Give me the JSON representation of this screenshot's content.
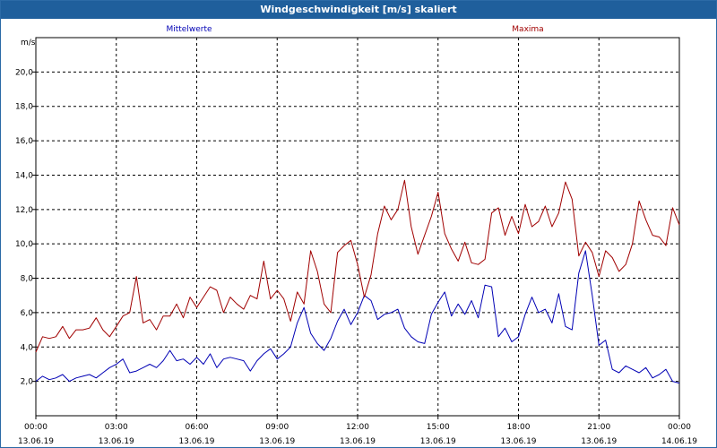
{
  "window": {
    "title": "Windgeschwindigkeit [m/s] skaliert"
  },
  "chart_data": {
    "type": "line",
    "title": "Windgeschwindigkeit [m/s] skaliert",
    "ylabel": "m/s",
    "ylim": [
      0,
      22
    ],
    "yticks": [
      {
        "value": 2,
        "label": "2,0"
      },
      {
        "value": 4,
        "label": "4,0"
      },
      {
        "value": 6,
        "label": "6,0"
      },
      {
        "value": 8,
        "label": "8,0"
      },
      {
        "value": 10,
        "label": "10,0"
      },
      {
        "value": 12,
        "label": "12,0"
      },
      {
        "value": 14,
        "label": "14,0"
      },
      {
        "value": 16,
        "label": "16,0"
      },
      {
        "value": 18,
        "label": "18,0"
      },
      {
        "value": 20,
        "label": "20,0"
      }
    ],
    "xlim": [
      0,
      24
    ],
    "xticks": [
      {
        "value": 0,
        "time": "00:00",
        "date": "13.06.19"
      },
      {
        "value": 3,
        "time": "03:00",
        "date": "13.06.19"
      },
      {
        "value": 6,
        "time": "06:00",
        "date": "13.06.19"
      },
      {
        "value": 9,
        "time": "09:00",
        "date": "13.06.19"
      },
      {
        "value": 12,
        "time": "12:00",
        "date": "13.06.19"
      },
      {
        "value": 15,
        "time": "15:00",
        "date": "13.06.19"
      },
      {
        "value": 18,
        "time": "18:00",
        "date": "13.06.19"
      },
      {
        "value": 21,
        "time": "21:00",
        "date": "13.06.19"
      },
      {
        "value": 24,
        "time": "00:00",
        "date": "14.06.19"
      }
    ],
    "grid": true,
    "series": [
      {
        "name": "Mittelwerte",
        "color": "#0000b4",
        "points": [
          [
            0,
            2.0
          ],
          [
            0.25,
            2.3
          ],
          [
            0.5,
            2.1
          ],
          [
            0.75,
            2.2
          ],
          [
            1,
            2.4
          ],
          [
            1.25,
            2.0
          ],
          [
            1.5,
            2.2
          ],
          [
            1.75,
            2.3
          ],
          [
            2,
            2.4
          ],
          [
            2.25,
            2.2
          ],
          [
            2.5,
            2.5
          ],
          [
            2.75,
            2.8
          ],
          [
            3,
            3.0
          ],
          [
            3.25,
            3.3
          ],
          [
            3.5,
            2.5
          ],
          [
            3.75,
            2.6
          ],
          [
            4,
            2.8
          ],
          [
            4.25,
            3.0
          ],
          [
            4.5,
            2.8
          ],
          [
            4.75,
            3.2
          ],
          [
            5,
            3.8
          ],
          [
            5.25,
            3.2
          ],
          [
            5.5,
            3.3
          ],
          [
            5.75,
            3.0
          ],
          [
            6,
            3.4
          ],
          [
            6.25,
            3.0
          ],
          [
            6.5,
            3.6
          ],
          [
            6.75,
            2.8
          ],
          [
            7,
            3.3
          ],
          [
            7.25,
            3.4
          ],
          [
            7.5,
            3.3
          ],
          [
            7.75,
            3.2
          ],
          [
            8,
            2.6
          ],
          [
            8.25,
            3.2
          ],
          [
            8.5,
            3.6
          ],
          [
            8.75,
            3.9
          ],
          [
            9,
            3.3
          ],
          [
            9.25,
            3.6
          ],
          [
            9.5,
            4.0
          ],
          [
            9.75,
            5.4
          ],
          [
            10,
            6.3
          ],
          [
            10.25,
            4.8
          ],
          [
            10.5,
            4.2
          ],
          [
            10.75,
            3.8
          ],
          [
            11,
            4.5
          ],
          [
            11.25,
            5.5
          ],
          [
            11.5,
            6.2
          ],
          [
            11.75,
            5.3
          ],
          [
            12,
            6.0
          ],
          [
            12.25,
            7.0
          ],
          [
            12.5,
            6.7
          ],
          [
            12.75,
            5.6
          ],
          [
            13,
            5.9
          ],
          [
            13.25,
            6.0
          ],
          [
            13.5,
            6.2
          ],
          [
            13.75,
            5.1
          ],
          [
            14,
            4.6
          ],
          [
            14.25,
            4.3
          ],
          [
            14.5,
            4.2
          ],
          [
            14.75,
            5.9
          ],
          [
            15,
            6.6
          ],
          [
            15.25,
            7.2
          ],
          [
            15.5,
            5.8
          ],
          [
            15.75,
            6.5
          ],
          [
            16,
            5.9
          ],
          [
            16.25,
            6.7
          ],
          [
            16.5,
            5.7
          ],
          [
            16.75,
            7.6
          ],
          [
            17,
            7.5
          ],
          [
            17.25,
            4.6
          ],
          [
            17.5,
            5.1
          ],
          [
            17.75,
            4.3
          ],
          [
            18,
            4.6
          ],
          [
            18.25,
            5.9
          ],
          [
            18.5,
            6.9
          ],
          [
            18.75,
            6.0
          ],
          [
            19,
            6.2
          ],
          [
            19.25,
            5.4
          ],
          [
            19.5,
            7.1
          ],
          [
            19.75,
            5.2
          ],
          [
            20,
            5.0
          ],
          [
            20.25,
            8.3
          ],
          [
            20.5,
            9.6
          ],
          [
            20.75,
            7.0
          ],
          [
            21,
            4.1
          ],
          [
            21.25,
            4.4
          ],
          [
            21.5,
            2.7
          ],
          [
            21.75,
            2.5
          ],
          [
            22,
            2.9
          ],
          [
            22.25,
            2.7
          ],
          [
            22.5,
            2.5
          ],
          [
            22.75,
            2.8
          ],
          [
            23,
            2.2
          ],
          [
            23.25,
            2.4
          ],
          [
            23.5,
            2.7
          ],
          [
            23.75,
            2.0
          ],
          [
            24,
            1.9
          ]
        ]
      },
      {
        "name": "Maxima",
        "color": "#a00000",
        "points": [
          [
            0,
            3.7
          ],
          [
            0.25,
            4.6
          ],
          [
            0.5,
            4.5
          ],
          [
            0.75,
            4.6
          ],
          [
            1,
            5.2
          ],
          [
            1.25,
            4.5
          ],
          [
            1.5,
            5.0
          ],
          [
            1.75,
            5.0
          ],
          [
            2,
            5.1
          ],
          [
            2.25,
            5.7
          ],
          [
            2.5,
            5.0
          ],
          [
            2.75,
            4.6
          ],
          [
            3,
            5.2
          ],
          [
            3.25,
            5.8
          ],
          [
            3.5,
            6.0
          ],
          [
            3.75,
            8.1
          ],
          [
            4,
            5.4
          ],
          [
            4.25,
            5.6
          ],
          [
            4.5,
            5.0
          ],
          [
            4.75,
            5.8
          ],
          [
            5,
            5.8
          ],
          [
            5.25,
            6.5
          ],
          [
            5.5,
            5.7
          ],
          [
            5.75,
            6.9
          ],
          [
            6,
            6.3
          ],
          [
            6.25,
            6.9
          ],
          [
            6.5,
            7.5
          ],
          [
            6.75,
            7.3
          ],
          [
            7,
            6.0
          ],
          [
            7.25,
            6.9
          ],
          [
            7.5,
            6.5
          ],
          [
            7.75,
            6.2
          ],
          [
            8,
            7.0
          ],
          [
            8.25,
            6.8
          ],
          [
            8.5,
            9.0
          ],
          [
            8.75,
            6.8
          ],
          [
            9,
            7.3
          ],
          [
            9.25,
            6.8
          ],
          [
            9.5,
            5.5
          ],
          [
            9.75,
            7.2
          ],
          [
            10,
            6.5
          ],
          [
            10.25,
            9.6
          ],
          [
            10.5,
            8.4
          ],
          [
            10.75,
            6.5
          ],
          [
            11,
            6.0
          ],
          [
            11.25,
            9.5
          ],
          [
            11.5,
            9.9
          ],
          [
            11.75,
            10.2
          ],
          [
            12,
            8.8
          ],
          [
            12.25,
            6.9
          ],
          [
            12.5,
            8.2
          ],
          [
            12.75,
            10.6
          ],
          [
            13,
            12.2
          ],
          [
            13.25,
            11.4
          ],
          [
            13.5,
            12.0
          ],
          [
            13.75,
            13.7
          ],
          [
            14,
            11.0
          ],
          [
            14.25,
            9.4
          ],
          [
            14.5,
            10.5
          ],
          [
            14.75,
            11.6
          ],
          [
            15,
            13.0
          ],
          [
            15.25,
            10.6
          ],
          [
            15.5,
            9.7
          ],
          [
            15.75,
            9.0
          ],
          [
            16,
            10.1
          ],
          [
            16.25,
            8.9
          ],
          [
            16.5,
            8.8
          ],
          [
            16.75,
            9.1
          ],
          [
            17,
            11.8
          ],
          [
            17.25,
            12.1
          ],
          [
            17.5,
            10.5
          ],
          [
            17.75,
            11.6
          ],
          [
            18,
            10.6
          ],
          [
            18.25,
            12.3
          ],
          [
            18.5,
            11.0
          ],
          [
            18.75,
            11.3
          ],
          [
            19,
            12.2
          ],
          [
            19.25,
            11.0
          ],
          [
            19.5,
            11.8
          ],
          [
            19.75,
            13.6
          ],
          [
            20,
            12.6
          ],
          [
            20.25,
            9.3
          ],
          [
            20.5,
            10.1
          ],
          [
            20.75,
            9.5
          ],
          [
            21,
            8.1
          ],
          [
            21.25,
            9.6
          ],
          [
            21.5,
            9.2
          ],
          [
            21.75,
            8.4
          ],
          [
            22,
            8.8
          ],
          [
            22.25,
            10.0
          ],
          [
            22.5,
            12.5
          ],
          [
            22.75,
            11.4
          ],
          [
            23,
            10.5
          ],
          [
            23.25,
            10.4
          ],
          [
            23.5,
            9.9
          ],
          [
            23.75,
            12.1
          ],
          [
            24,
            11.1
          ]
        ]
      }
    ],
    "legend": [
      {
        "label": "Mittelwerte",
        "color": "#0000b4",
        "position": "top-left"
      },
      {
        "label": "Maxima",
        "color": "#a00000",
        "position": "top-right"
      }
    ]
  }
}
